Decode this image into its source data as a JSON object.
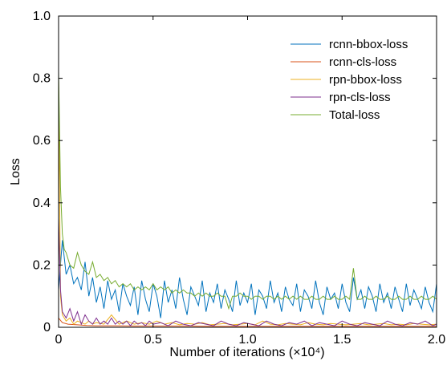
{
  "chart_data": {
    "type": "line",
    "title": "",
    "xlabel": "Number of iterations (×10⁴)",
    "ylabel": "Loss",
    "xlim": [
      0,
      2.0
    ],
    "ylim": [
      0,
      1.0
    ],
    "x_ticks": [
      "0",
      "0.5",
      "1.0",
      "1.5",
      "2.0"
    ],
    "y_ticks": [
      "0",
      "0.2",
      "0.4",
      "0.6",
      "0.8",
      "1.0"
    ],
    "grid": false,
    "legend": "top-right",
    "series": [
      {
        "name": "rcnn-bbox-loss",
        "color": "#0072BD",
        "x": [
          0.0,
          0.02,
          0.04,
          0.06,
          0.08,
          0.1,
          0.12,
          0.14,
          0.16,
          0.18,
          0.2,
          0.22,
          0.24,
          0.26,
          0.28,
          0.3,
          0.32,
          0.34,
          0.36,
          0.38,
          0.4,
          0.42,
          0.44,
          0.46,
          0.48,
          0.5,
          0.52,
          0.54,
          0.56,
          0.58,
          0.6,
          0.62,
          0.64,
          0.66,
          0.68,
          0.7,
          0.72,
          0.74,
          0.76,
          0.78,
          0.8,
          0.82,
          0.84,
          0.86,
          0.88,
          0.9,
          0.92,
          0.94,
          0.96,
          0.98,
          1.0,
          1.02,
          1.04,
          1.06,
          1.08,
          1.1,
          1.12,
          1.14,
          1.16,
          1.18,
          1.2,
          1.22,
          1.24,
          1.26,
          1.28,
          1.3,
          1.32,
          1.34,
          1.36,
          1.38,
          1.4,
          1.42,
          1.44,
          1.46,
          1.48,
          1.5,
          1.52,
          1.54,
          1.56,
          1.58,
          1.6,
          1.62,
          1.64,
          1.66,
          1.68,
          1.7,
          1.72,
          1.74,
          1.76,
          1.78,
          1.8,
          1.82,
          1.84,
          1.86,
          1.88,
          1.9,
          1.92,
          1.94,
          1.96,
          1.98,
          2.0
        ],
        "y": [
          0.12,
          0.28,
          0.17,
          0.2,
          0.14,
          0.16,
          0.12,
          0.21,
          0.1,
          0.16,
          0.08,
          0.13,
          0.06,
          0.15,
          0.09,
          0.12,
          0.05,
          0.14,
          0.1,
          0.07,
          0.13,
          0.04,
          0.15,
          0.09,
          0.05,
          0.14,
          0.1,
          0.03,
          0.15,
          0.08,
          0.12,
          0.06,
          0.16,
          0.09,
          0.04,
          0.13,
          0.1,
          0.07,
          0.15,
          0.05,
          0.11,
          0.08,
          0.14,
          0.06,
          0.12,
          0.09,
          0.05,
          0.15,
          0.07,
          0.11,
          0.08,
          0.14,
          0.04,
          0.12,
          0.1,
          0.06,
          0.15,
          0.08,
          0.11,
          0.05,
          0.13,
          0.09,
          0.07,
          0.14,
          0.05,
          0.12,
          0.1,
          0.06,
          0.15,
          0.08,
          0.04,
          0.13,
          0.09,
          0.11,
          0.06,
          0.14,
          0.08,
          0.05,
          0.16,
          0.09,
          0.12,
          0.06,
          0.13,
          0.1,
          0.05,
          0.14,
          0.08,
          0.11,
          0.06,
          0.13,
          0.09,
          0.05,
          0.14,
          0.07,
          0.12,
          0.09,
          0.06,
          0.13,
          0.08,
          0.05,
          0.14
        ]
      },
      {
        "name": "rcnn-cls-loss",
        "color": "#D95319",
        "x": [
          0.0,
          0.02,
          0.05,
          0.1,
          0.15,
          0.2,
          0.3,
          0.4,
          0.5,
          0.6,
          0.7,
          0.8,
          0.9,
          1.0,
          1.1,
          1.2,
          1.3,
          1.4,
          1.5,
          1.6,
          1.7,
          1.8,
          1.9,
          2.0
        ],
        "y": [
          0.03,
          0.015,
          0.01,
          0.008,
          0.006,
          0.005,
          0.005,
          0.004,
          0.004,
          0.004,
          0.004,
          0.003,
          0.003,
          0.003,
          0.003,
          0.003,
          0.003,
          0.003,
          0.003,
          0.003,
          0.003,
          0.003,
          0.003,
          0.003
        ]
      },
      {
        "name": "rpn-bbox-loss",
        "color": "#EDB120",
        "x": [
          0.0,
          0.01,
          0.02,
          0.04,
          0.06,
          0.08,
          0.1,
          0.12,
          0.14,
          0.16,
          0.18,
          0.2,
          0.24,
          0.28,
          0.32,
          0.36,
          0.4,
          0.44,
          0.48,
          0.52,
          0.56,
          0.6,
          0.64,
          0.68,
          0.72,
          0.76,
          0.8,
          0.84,
          0.88,
          0.92,
          0.96,
          1.0,
          1.04,
          1.08,
          1.12,
          1.16,
          1.2,
          1.24,
          1.28,
          1.32,
          1.36,
          1.4,
          1.44,
          1.48,
          1.52,
          1.56,
          1.6,
          1.64,
          1.68,
          1.72,
          1.76,
          1.8,
          1.84,
          1.88,
          1.92,
          1.96,
          2.0
        ],
        "y": [
          0.8,
          0.1,
          0.04,
          0.02,
          0.03,
          0.01,
          0.02,
          0.015,
          0.01,
          0.02,
          0.01,
          0.015,
          0.01,
          0.04,
          0.01,
          0.02,
          0.01,
          0.015,
          0.01,
          0.02,
          0.01,
          0.015,
          0.008,
          0.012,
          0.01,
          0.015,
          0.008,
          0.01,
          0.012,
          0.008,
          0.01,
          0.012,
          0.008,
          0.02,
          0.01,
          0.008,
          0.012,
          0.01,
          0.008,
          0.015,
          0.01,
          0.008,
          0.012,
          0.01,
          0.008,
          0.01,
          0.012,
          0.008,
          0.01,
          0.012,
          0.008,
          0.01,
          0.008,
          0.012,
          0.01,
          0.008,
          0.01
        ]
      },
      {
        "name": "rpn-cls-loss",
        "color": "#7E2F8E",
        "x": [
          0.0,
          0.01,
          0.02,
          0.04,
          0.06,
          0.08,
          0.1,
          0.12,
          0.14,
          0.16,
          0.18,
          0.2,
          0.22,
          0.24,
          0.26,
          0.28,
          0.3,
          0.32,
          0.34,
          0.36,
          0.38,
          0.4,
          0.42,
          0.44,
          0.46,
          0.48,
          0.5,
          0.54,
          0.58,
          0.62,
          0.66,
          0.7,
          0.74,
          0.78,
          0.82,
          0.86,
          0.9,
          0.94,
          0.98,
          1.02,
          1.06,
          1.1,
          1.14,
          1.18,
          1.22,
          1.26,
          1.3,
          1.34,
          1.38,
          1.42,
          1.46,
          1.5,
          1.54,
          1.58,
          1.62,
          1.66,
          1.7,
          1.74,
          1.78,
          1.82,
          1.86,
          1.9,
          1.94,
          1.98,
          2.0
        ],
        "y": [
          0.35,
          0.12,
          0.05,
          0.03,
          0.06,
          0.02,
          0.05,
          0.01,
          0.04,
          0.02,
          0.01,
          0.03,
          0.01,
          0.02,
          0.01,
          0.03,
          0.01,
          0.02,
          0.01,
          0.02,
          0.005,
          0.02,
          0.01,
          0.015,
          0.005,
          0.02,
          0.01,
          0.015,
          0.005,
          0.02,
          0.01,
          0.005,
          0.015,
          0.01,
          0.005,
          0.02,
          0.01,
          0.005,
          0.015,
          0.01,
          0.005,
          0.02,
          0.01,
          0.005,
          0.015,
          0.01,
          0.02,
          0.005,
          0.015,
          0.01,
          0.005,
          0.02,
          0.01,
          0.005,
          0.015,
          0.01,
          0.005,
          0.02,
          0.01,
          0.005,
          0.015,
          0.01,
          0.02,
          0.005,
          0.01
        ]
      },
      {
        "name": "Total-loss",
        "color": "#77AC30",
        "x": [
          0.0,
          0.01,
          0.02,
          0.03,
          0.04,
          0.06,
          0.08,
          0.1,
          0.12,
          0.14,
          0.16,
          0.18,
          0.2,
          0.22,
          0.24,
          0.26,
          0.28,
          0.3,
          0.32,
          0.34,
          0.36,
          0.38,
          0.4,
          0.42,
          0.44,
          0.46,
          0.48,
          0.5,
          0.52,
          0.54,
          0.56,
          0.58,
          0.6,
          0.62,
          0.64,
          0.66,
          0.68,
          0.7,
          0.72,
          0.74,
          0.76,
          0.78,
          0.8,
          0.82,
          0.84,
          0.86,
          0.88,
          0.9,
          0.92,
          0.94,
          0.96,
          0.98,
          1.0,
          1.02,
          1.04,
          1.06,
          1.08,
          1.1,
          1.12,
          1.14,
          1.16,
          1.18,
          1.2,
          1.22,
          1.24,
          1.26,
          1.28,
          1.3,
          1.32,
          1.34,
          1.36,
          1.38,
          1.4,
          1.42,
          1.44,
          1.46,
          1.48,
          1.5,
          1.52,
          1.54,
          1.56,
          1.58,
          1.6,
          1.62,
          1.64,
          1.66,
          1.68,
          1.7,
          1.72,
          1.74,
          1.76,
          1.78,
          1.8,
          1.82,
          1.84,
          1.86,
          1.88,
          1.9,
          1.92,
          1.94,
          1.96,
          1.98,
          2.0
        ],
        "y": [
          0.82,
          0.45,
          0.3,
          0.25,
          0.24,
          0.2,
          0.19,
          0.24,
          0.2,
          0.18,
          0.17,
          0.21,
          0.16,
          0.17,
          0.15,
          0.16,
          0.14,
          0.15,
          0.13,
          0.14,
          0.13,
          0.14,
          0.12,
          0.13,
          0.12,
          0.13,
          0.12,
          0.14,
          0.12,
          0.13,
          0.12,
          0.13,
          0.11,
          0.12,
          0.11,
          0.12,
          0.11,
          0.11,
          0.1,
          0.11,
          0.1,
          0.11,
          0.1,
          0.1,
          0.11,
          0.1,
          0.1,
          0.06,
          0.1,
          0.1,
          0.11,
          0.1,
          0.1,
          0.09,
          0.1,
          0.1,
          0.09,
          0.1,
          0.1,
          0.09,
          0.1,
          0.09,
          0.1,
          0.09,
          0.1,
          0.09,
          0.1,
          0.09,
          0.09,
          0.1,
          0.09,
          0.09,
          0.1,
          0.09,
          0.09,
          0.1,
          0.09,
          0.09,
          0.1,
          0.09,
          0.19,
          0.09,
          0.09,
          0.1,
          0.09,
          0.09,
          0.1,
          0.09,
          0.09,
          0.1,
          0.09,
          0.09,
          0.1,
          0.09,
          0.09,
          0.1,
          0.09,
          0.09,
          0.1,
          0.09,
          0.09,
          0.1,
          0.09
        ]
      }
    ]
  }
}
